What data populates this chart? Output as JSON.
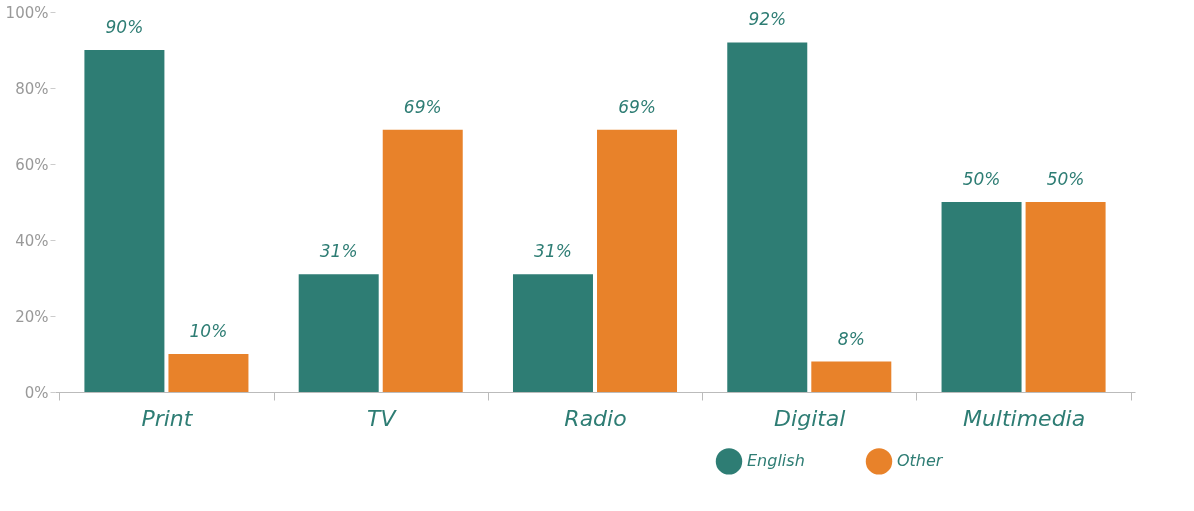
{
  "chart_data": {
    "type": "bar",
    "categories": [
      "Print",
      "TV",
      "Radio",
      "Digital",
      "Multimedia"
    ],
    "series": [
      {
        "name": "English",
        "color": "#2e7d74",
        "values": [
          90,
          31,
          31,
          92,
          50
        ],
        "value_labels": [
          "90%",
          "31%",
          "31%",
          "92%",
          "50%"
        ]
      },
      {
        "name": "Other",
        "color": "#e8822a",
        "values": [
          10,
          69,
          69,
          8,
          50
        ],
        "value_labels": [
          "10%",
          "69%",
          "69%",
          "8%",
          "50%"
        ]
      }
    ],
    "ylim": [
      0,
      100
    ],
    "yticks": [
      {
        "value": 0,
        "label": "0%"
      },
      {
        "value": 20,
        "label": "20%"
      },
      {
        "value": 40,
        "label": "40%"
      },
      {
        "value": 60,
        "label": "60%"
      },
      {
        "value": 80,
        "label": "80%"
      },
      {
        "value": 100,
        "label": "100%"
      }
    ],
    "grid": false,
    "legend": "bottom right"
  }
}
